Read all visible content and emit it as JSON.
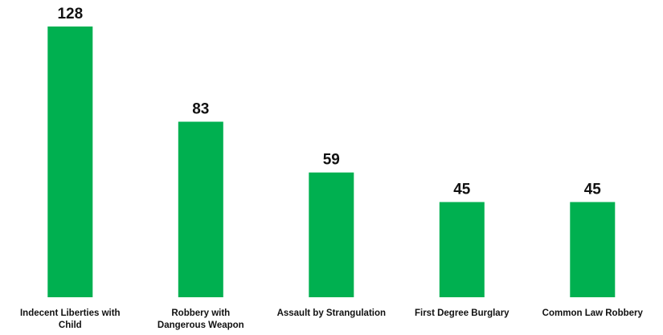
{
  "chart_data": {
    "type": "bar",
    "categories": [
      [
        "Indecent Liberties with",
        "Child"
      ],
      [
        "Robbery with",
        "Dangerous Weapon"
      ],
      [
        "Assault by Strangulation"
      ],
      [
        "First Degree Burglary"
      ],
      [
        "Common Law Robbery"
      ]
    ],
    "values": [
      128,
      83,
      59,
      45,
      45
    ],
    "value_labels": [
      "128",
      "83",
      "59",
      "45",
      "45"
    ],
    "title": "",
    "xlabel": "",
    "ylabel": "",
    "ylim": [
      0,
      128
    ],
    "grid": false,
    "legend": "none",
    "bar_color": "#00B050"
  }
}
